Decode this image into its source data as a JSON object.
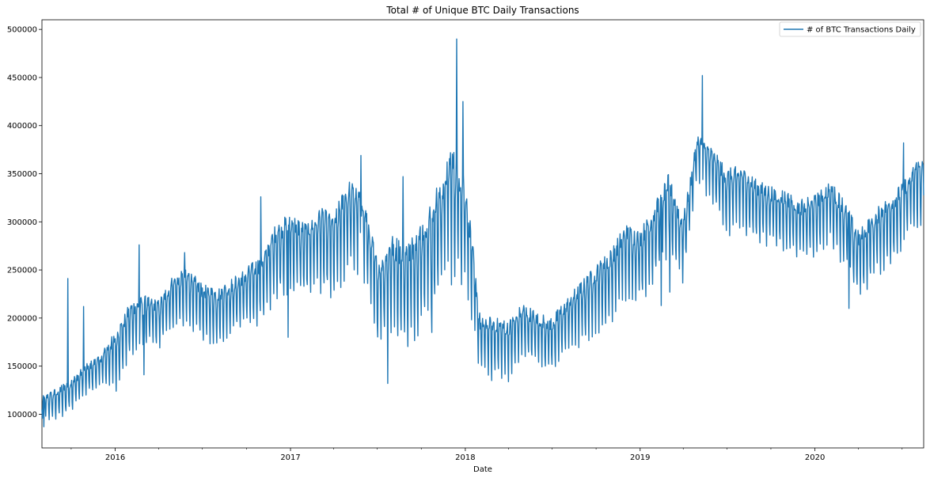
{
  "chart_data": {
    "type": "line",
    "title": "Total # of Unique BTC Daily Transactions",
    "xlabel": "Date",
    "ylabel": "",
    "xlim": [
      "2015-08-01",
      "2020-08-15"
    ],
    "ylim": [
      65000,
      510000
    ],
    "y_ticks": [
      100000,
      150000,
      200000,
      250000,
      300000,
      350000,
      400000,
      450000,
      500000
    ],
    "x_ticks": [
      {
        "label": "2016",
        "date": "2016-01-01"
      },
      {
        "label": "2017",
        "date": "2017-01-01"
      },
      {
        "label": "2018",
        "date": "2018-01-01"
      },
      {
        "label": "2019",
        "date": "2019-01-01"
      },
      {
        "label": "2020",
        "date": "2020-01-01"
      }
    ],
    "grid": false,
    "legend": {
      "placement": "top-right"
    },
    "series": [
      {
        "name": "# of BTC Transactions Daily",
        "color": "#1f77b4",
        "x": [
          "2015-08-01",
          "2015-09-01",
          "2015-10-01",
          "2015-11-01",
          "2015-12-01",
          "2016-01-01",
          "2016-02-01",
          "2016-03-01",
          "2016-04-01",
          "2016-05-01",
          "2016-06-01",
          "2016-07-01",
          "2016-08-01",
          "2016-09-01",
          "2016-10-01",
          "2016-11-01",
          "2016-12-01",
          "2017-01-01",
          "2017-02-01",
          "2017-03-01",
          "2017-04-01",
          "2017-05-01",
          "2017-06-01",
          "2017-07-01",
          "2017-08-01",
          "2017-09-01",
          "2017-10-01",
          "2017-11-01",
          "2017-12-01",
          "2018-01-01",
          "2018-02-01",
          "2018-03-01",
          "2018-04-01",
          "2018-05-01",
          "2018-06-01",
          "2018-07-01",
          "2018-08-01",
          "2018-09-01",
          "2018-10-01",
          "2018-11-01",
          "2018-12-01",
          "2019-01-01",
          "2019-02-01",
          "2019-03-01",
          "2019-04-01",
          "2019-05-01",
          "2019-06-01",
          "2019-07-01",
          "2019-08-01",
          "2019-09-01",
          "2019-10-01",
          "2019-11-01",
          "2019-12-01",
          "2020-01-01",
          "2020-02-01",
          "2020-03-01",
          "2020-04-01",
          "2020-05-01",
          "2020-06-01",
          "2020-07-01",
          "2020-08-01"
        ],
        "values": [
          110000,
          115000,
          125000,
          140000,
          150000,
          165000,
          195000,
          205000,
          200000,
          225000,
          230000,
          215000,
          210000,
          220000,
          230000,
          240000,
          270000,
          280000,
          270000,
          285000,
          275000,
          310000,
          300000,
          230000,
          250000,
          240000,
          260000,
          290000,
          330000,
          310000,
          180000,
          180000,
          175000,
          195000,
          185000,
          180000,
          200000,
          215000,
          230000,
          245000,
          270000,
          265000,
          290000,
          320000,
          280000,
          375000,
          355000,
          330000,
          335000,
          320000,
          315000,
          310000,
          300000,
          305000,
          320000,
          300000,
          265000,
          285000,
          300000,
          315000,
          340000
        ],
        "amplitude": [
          10000,
          15000,
          15000,
          14000,
          15000,
          25000,
          25000,
          22000,
          22000,
          24000,
          25000,
          25000,
          25000,
          26000,
          27000,
          30000,
          33000,
          35000,
          35000,
          36000,
          40000,
          40000,
          40000,
          38000,
          45000,
          45000,
          48000,
          52000,
          60000,
          50000,
          25000,
          25000,
          26000,
          25000,
          25000,
          25000,
          26000,
          28000,
          30000,
          32000,
          33000,
          32000,
          35000,
          35000,
          30000,
          20000,
          25000,
          30000,
          28000,
          28000,
          27000,
          27000,
          27000,
          27000,
          27000,
          30000,
          30000,
          30000,
          30000,
          30000,
          30000
        ],
        "spikes": [
          {
            "date": "2015-08-05",
            "value": 87000
          },
          {
            "date": "2015-09-24",
            "value": 241000
          },
          {
            "date": "2015-10-27",
            "value": 212000
          },
          {
            "date": "2016-01-03",
            "value": 124000
          },
          {
            "date": "2016-02-20",
            "value": 276000
          },
          {
            "date": "2016-03-01",
            "value": 141000
          },
          {
            "date": "2016-05-25",
            "value": 268000
          },
          {
            "date": "2016-10-31",
            "value": 326000
          },
          {
            "date": "2016-12-27",
            "value": 180000
          },
          {
            "date": "2017-05-28",
            "value": 369000
          },
          {
            "date": "2017-07-23",
            "value": 132000
          },
          {
            "date": "2017-08-24",
            "value": 347000
          },
          {
            "date": "2017-10-23",
            "value": 185000
          },
          {
            "date": "2017-12-14",
            "value": 490000
          },
          {
            "date": "2017-12-27",
            "value": 425000
          },
          {
            "date": "2018-02-25",
            "value": 135000
          },
          {
            "date": "2019-02-14",
            "value": 213000
          },
          {
            "date": "2019-03-04",
            "value": 227000
          },
          {
            "date": "2019-05-11",
            "value": 452000
          },
          {
            "date": "2020-03-12",
            "value": 210000
          },
          {
            "date": "2020-07-04",
            "value": 382000
          }
        ]
      }
    ]
  }
}
